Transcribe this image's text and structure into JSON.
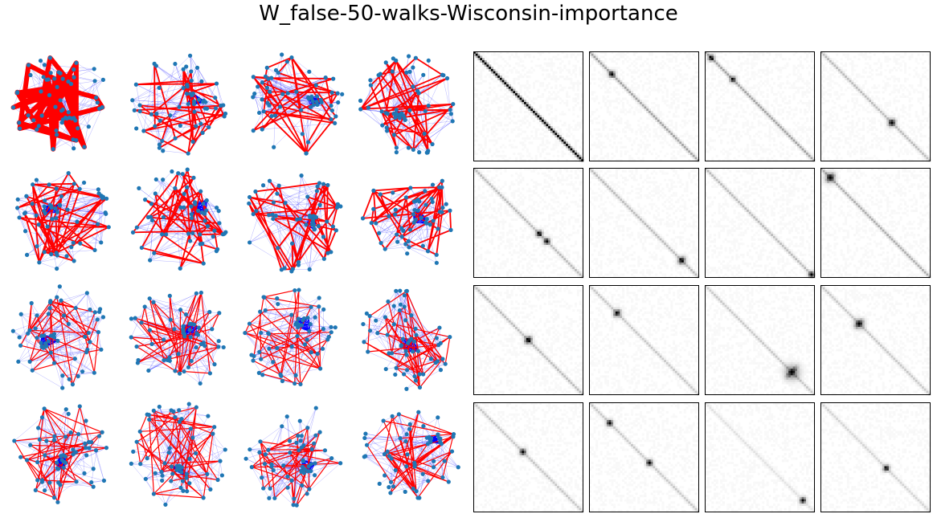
{
  "title": "W_false-50-walks-Wisconsin-importance",
  "chart_data": {
    "type": "graph-and-matrix-grid",
    "title": "W_false-50-walks-Wisconsin-importance",
    "rows": 4,
    "graph_panels": 16,
    "matrix_panels": 16,
    "node_color": "#1f77b4",
    "walk_edge_color": "#ff0000",
    "graph_edge_color": "#0000ff",
    "matrix_colormap": "gray_r",
    "matrix_diagonal_intensity": [
      1.0,
      0.35,
      0.35,
      0.25,
      0.25,
      0.25,
      0.25,
      0.3,
      0.25,
      0.2,
      0.2,
      0.2,
      0.2,
      0.2,
      0.1,
      0.15
    ],
    "matrix_hotspots": [
      [],
      [
        0.2
      ],
      [
        0.05,
        0.25
      ],
      [
        0.65
      ],
      [
        0.6,
        0.67
      ],
      [
        0.85
      ],
      [
        0.98
      ],
      [
        0.08
      ],
      [
        0.5
      ],
      [
        0.25
      ],
      [
        0.8
      ],
      [
        0.35
      ],
      [
        0.45
      ],
      [
        0.18,
        0.55
      ],
      [
        0.9
      ],
      [
        0.6
      ]
    ],
    "matrix_hotspot_strength": [
      0,
      0.9,
      0.8,
      0.9,
      0.9,
      0.9,
      0.9,
      0.9,
      0.9,
      0.9,
      0.9,
      0.9,
      0.9,
      0.9,
      0.9,
      0.9
    ],
    "matrix_hotspot_spread": [
      0,
      1,
      1,
      1.2,
      1,
      1.2,
      1,
      1.5,
      1.2,
      1.2,
      2.2,
      1.5,
      1,
      1,
      1,
      1
    ]
  }
}
